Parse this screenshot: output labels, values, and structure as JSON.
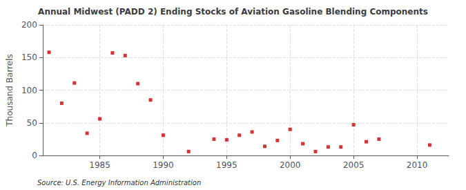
{
  "chart_data": {
    "type": "scatter",
    "title": "Annual Midwest (PADD 2) Ending Stocks of Aviation Gasoline Blending Components",
    "ylabel": "Thousand Barrels",
    "annotation": "Source: U.S. Energy Information Administration",
    "x": [
      1981,
      1982,
      1983,
      1984,
      1985,
      1986,
      1987,
      1988,
      1989,
      1990,
      1992,
      1994,
      1995,
      1996,
      1997,
      1998,
      1999,
      2000,
      2001,
      2002,
      2003,
      2004,
      2005,
      2006,
      2007,
      2011
    ],
    "values": [
      158,
      80,
      111,
      34,
      56,
      157,
      153,
      110,
      85,
      31,
      6,
      25,
      24,
      31,
      36,
      14,
      23,
      40,
      18,
      6,
      13,
      13,
      47,
      21,
      25,
      16
    ],
    "color": "#cc0000",
    "marker": "square",
    "xlim": [
      1980.5,
      2012.5
    ],
    "xticks": [
      1985,
      1990,
      1995,
      2000,
      2005,
      2010
    ],
    "ylim": [
      0,
      200
    ],
    "yticks": [
      0,
      50,
      100,
      150,
      200
    ],
    "grid": true
  }
}
